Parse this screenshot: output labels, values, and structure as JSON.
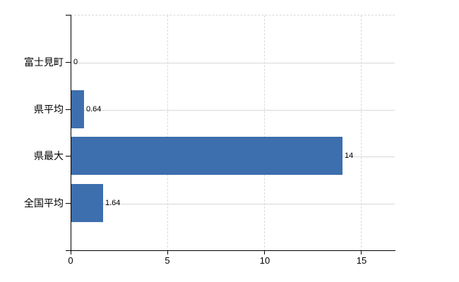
{
  "chart_data": {
    "type": "bar",
    "orientation": "horizontal",
    "title": "",
    "xlabel": "",
    "ylabel": "",
    "categories": [
      "富士見町",
      "県平均",
      "県最大",
      "全国平均"
    ],
    "values": [
      0,
      0.64,
      14,
      1.64
    ],
    "value_labels": [
      "0",
      "0.64",
      "14",
      "1.64"
    ],
    "xlim": [
      0,
      15
    ],
    "x_ticks": [
      0,
      5,
      10,
      15
    ],
    "x_tick_labels": [
      "0",
      "5",
      "10",
      "15"
    ],
    "grid": "on",
    "legend": "none",
    "colors": {
      "bar": "#3d6ead",
      "axis": "#000000",
      "gridline": "#d9d9d9",
      "background": "#ffffff",
      "text": "#000000"
    }
  }
}
